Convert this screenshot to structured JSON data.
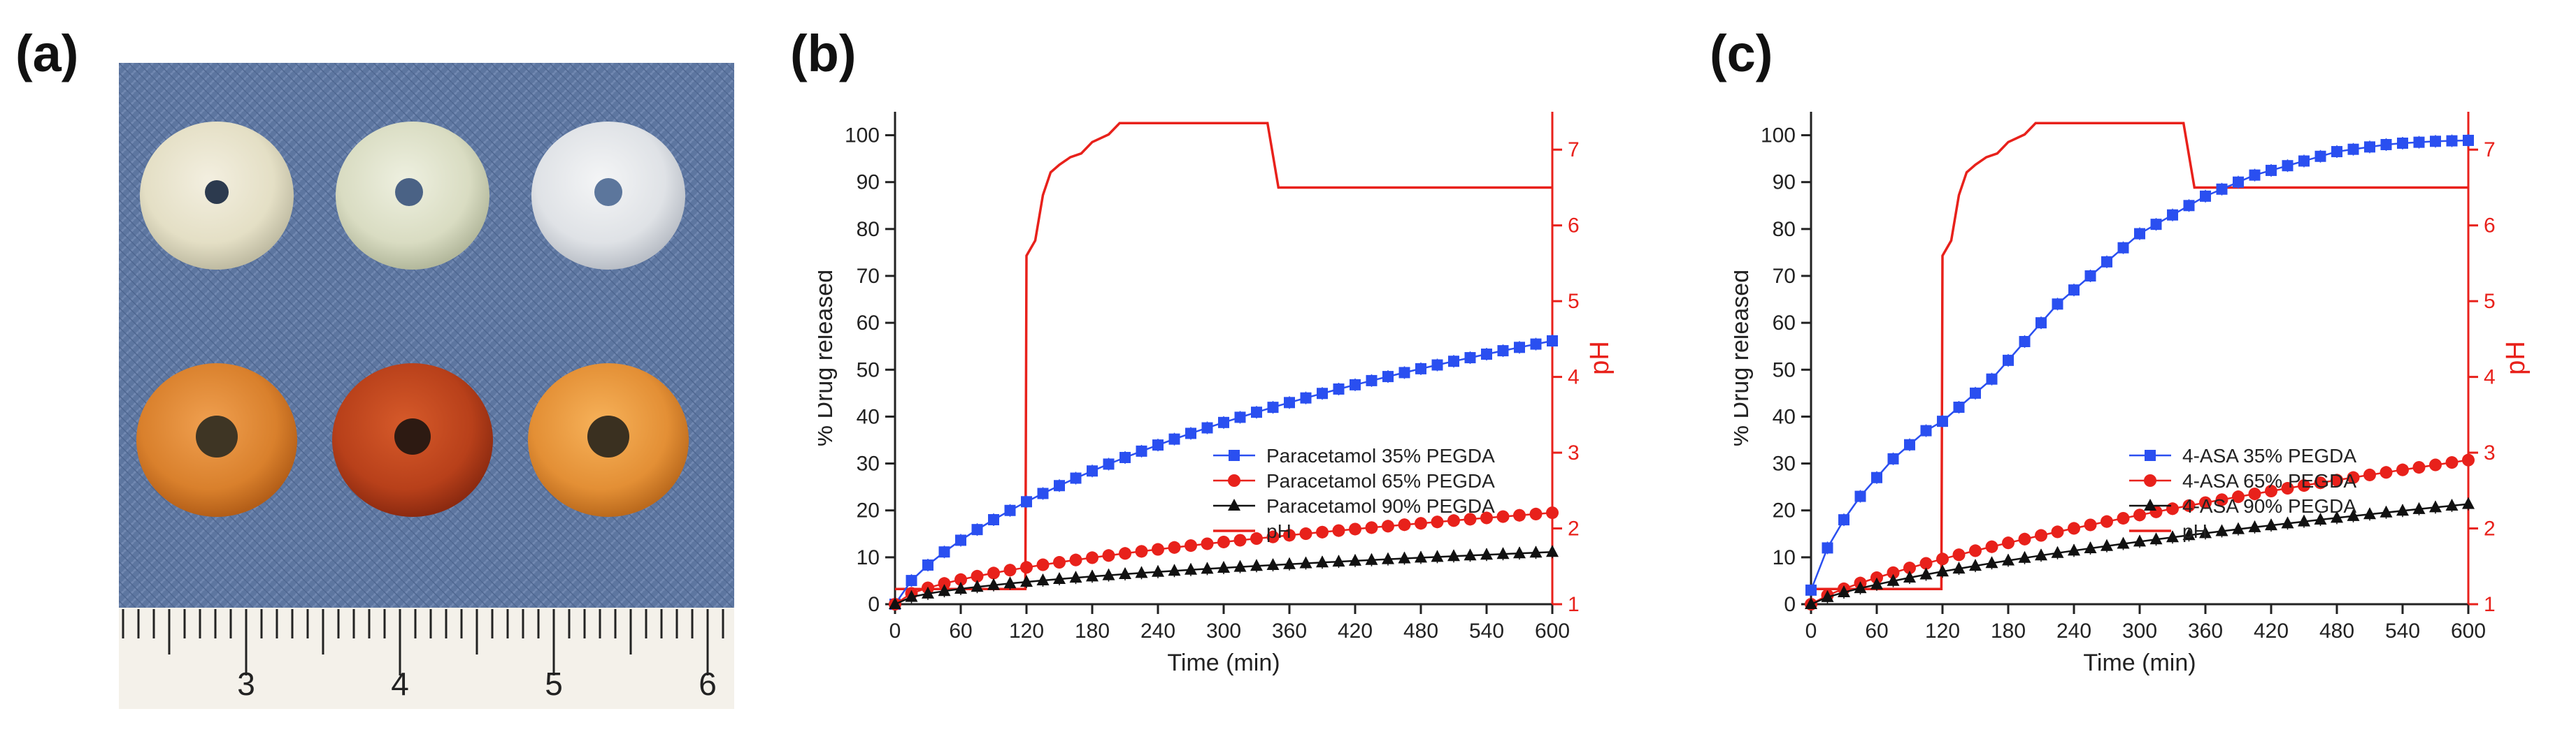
{
  "figure": {
    "panel_labels": [
      "(a)",
      "(b)",
      "(c)"
    ]
  },
  "photo": {
    "ruler_labels": [
      "3",
      "4",
      "5",
      "6"
    ]
  },
  "colors": {
    "blue": "#2a4ff0",
    "red": "#e8211b",
    "black": "#111111",
    "axis": "#222222",
    "ph_axis": "#e8211b"
  },
  "chart_data": [
    {
      "type": "line",
      "panel": "(b)",
      "xlabel": "Time (min)",
      "ylabel": "% Drug released",
      "y2label": "pH",
      "xlim": [
        0,
        600
      ],
      "ylim": [
        0,
        105
      ],
      "y2lim": [
        1,
        7.5
      ],
      "xticks": [
        0,
        60,
        120,
        180,
        240,
        300,
        360,
        420,
        480,
        540,
        600
      ],
      "yticks": [
        0,
        10,
        20,
        30,
        40,
        50,
        60,
        70,
        80,
        90,
        100
      ],
      "y2ticks": [
        1,
        2,
        3,
        4,
        5,
        6,
        7
      ],
      "series": [
        {
          "name": "Paracetamol 35% PEGDA",
          "marker": "square",
          "color": "#2a4ff0",
          "params": {
            "a": 100,
            "k": 0.0068,
            "n": 0.75
          },
          "x_step": 15
        },
        {
          "name": "Paracetamol 65% PEGDA",
          "marker": "circle",
          "color": "#e8211b",
          "params": {
            "a": 115,
            "k": 0.004,
            "n": 0.6
          },
          "x_step": 15
        },
        {
          "name": "Paracetamol 90% PEGDA",
          "marker": "triangle",
          "color": "#111111",
          "params": {
            "a": 100,
            "k": 0.0035,
            "n": 0.55
          },
          "x_step": 15
        }
      ],
      "ph": {
        "name": "pH",
        "color": "#e8211b",
        "points": [
          [
            0,
            1.2
          ],
          [
            119,
            1.2
          ],
          [
            120,
            5.6
          ],
          [
            128,
            5.8
          ],
          [
            135,
            6.4
          ],
          [
            142,
            6.7
          ],
          [
            150,
            6.8
          ],
          [
            160,
            6.9
          ],
          [
            170,
            6.95
          ],
          [
            180,
            7.1
          ],
          [
            195,
            7.2
          ],
          [
            205,
            7.35
          ],
          [
            320,
            7.35
          ],
          [
            340,
            7.35
          ],
          [
            350,
            6.5
          ],
          [
            600,
            6.5
          ]
        ]
      },
      "legend_position": "center-right"
    },
    {
      "type": "line",
      "panel": "(c)",
      "xlabel": "Time (min)",
      "ylabel": "% Drug released",
      "y2label": "pH",
      "xlim": [
        0,
        600
      ],
      "ylim": [
        0,
        105
      ],
      "y2lim": [
        1,
        7.5
      ],
      "xticks": [
        0,
        60,
        120,
        180,
        240,
        300,
        360,
        420,
        480,
        540,
        600
      ],
      "yticks": [
        0,
        10,
        20,
        30,
        40,
        50,
        60,
        70,
        80,
        90,
        100
      ],
      "y2ticks": [
        1,
        2,
        3,
        4,
        5,
        6,
        7
      ],
      "series": [
        {
          "name": "4-ASA 35% PEGDA",
          "marker": "square",
          "color": "#2a4ff0",
          "points": [
            [
              0,
              3
            ],
            [
              15,
              12
            ],
            [
              30,
              18
            ],
            [
              45,
              23
            ],
            [
              60,
              27
            ],
            [
              75,
              31
            ],
            [
              90,
              34
            ],
            [
              105,
              37
            ],
            [
              120,
              39
            ],
            [
              135,
              42
            ],
            [
              150,
              45
            ],
            [
              165,
              48
            ],
            [
              180,
              52
            ],
            [
              195,
              56
            ],
            [
              210,
              60
            ],
            [
              225,
              64
            ],
            [
              240,
              67
            ],
            [
              255,
              70
            ],
            [
              270,
              73
            ],
            [
              285,
              76
            ],
            [
              300,
              79
            ],
            [
              315,
              81
            ],
            [
              330,
              83
            ],
            [
              345,
              85
            ],
            [
              360,
              87
            ],
            [
              375,
              88.5
            ],
            [
              390,
              90
            ],
            [
              405,
              91.5
            ],
            [
              420,
              92.5
            ],
            [
              435,
              93.5
            ],
            [
              450,
              94.5
            ],
            [
              465,
              95.5
            ],
            [
              480,
              96.5
            ],
            [
              495,
              97
            ],
            [
              510,
              97.5
            ],
            [
              525,
              98
            ],
            [
              540,
              98.3
            ],
            [
              555,
              98.5
            ],
            [
              570,
              98.7
            ],
            [
              585,
              98.8
            ],
            [
              600,
              98.9
            ]
          ]
        },
        {
          "name": "4-ASA 65% PEGDA",
          "marker": "circle",
          "color": "#e8211b",
          "params": {
            "a": 100,
            "k": 0.0022,
            "n": 0.8
          },
          "x_step": 15
        },
        {
          "name": "4-ASA 90% PEGDA",
          "marker": "triangle",
          "color": "#111111",
          "params": {
            "a": 95,
            "k": 0.0021,
            "n": 0.75
          },
          "x_step": 15
        }
      ],
      "ph": {
        "name": "pH",
        "color": "#e8211b",
        "points": [
          [
            0,
            1.2
          ],
          [
            119,
            1.2
          ],
          [
            120,
            5.6
          ],
          [
            128,
            5.8
          ],
          [
            135,
            6.4
          ],
          [
            142,
            6.7
          ],
          [
            150,
            6.8
          ],
          [
            160,
            6.9
          ],
          [
            170,
            6.95
          ],
          [
            180,
            7.1
          ],
          [
            195,
            7.2
          ],
          [
            205,
            7.35
          ],
          [
            320,
            7.35
          ],
          [
            340,
            7.35
          ],
          [
            350,
            6.5
          ],
          [
            600,
            6.5
          ]
        ]
      },
      "legend_position": "center-right"
    }
  ]
}
